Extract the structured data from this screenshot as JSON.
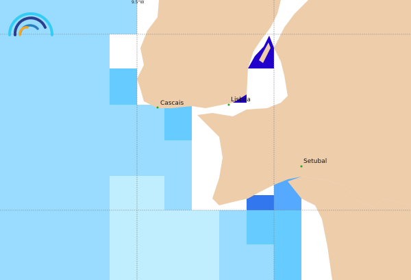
{
  "map": {
    "graticule_label": "9.5°W",
    "places": [
      {
        "name": "Cascais"
      },
      {
        "name": "Lisboa"
      },
      {
        "name": "Setubal"
      }
    ],
    "colors": {
      "land": "#edcdaa",
      "sea_light": "#c0eeff",
      "sea_medium": "#99dcff",
      "sea_bright": "#66ccff",
      "sea_blue": "#55aaff",
      "sea_strong": "#3377ee",
      "sea_deep": "#2200cc",
      "place_marker": "#22aa22"
    },
    "logo": "wave-arc-logo"
  }
}
